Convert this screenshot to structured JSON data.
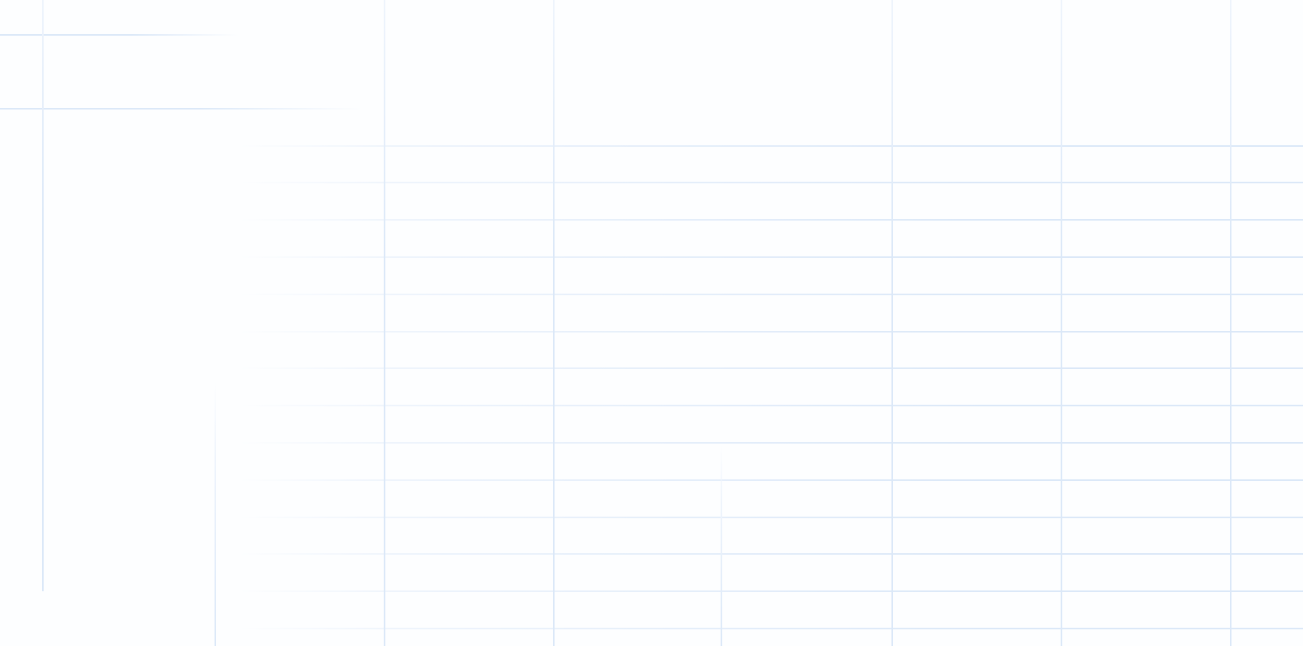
{
  "page": {
    "background": "#fdfeff"
  },
  "grid": {
    "line_color": "#dbe8f8",
    "line_color_faint": "#eef4fc",
    "horizontal_line_count": 16,
    "vertical_line_count": 9
  }
}
